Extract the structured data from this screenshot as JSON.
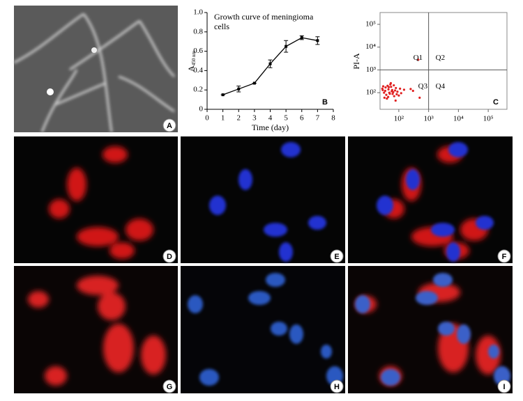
{
  "chart_data": [
    {
      "type": "line",
      "title": [
        "Growth curve of meningioma",
        "cells"
      ],
      "xlabel": "Time (day)",
      "ylabel": "A",
      "ylabel_sub": "450 nm",
      "panel": "B",
      "x": [
        1,
        2,
        3,
        4,
        5,
        6,
        7
      ],
      "series": [
        {
          "color": "#000000",
          "values": [
            0.15,
            0.21,
            0.27,
            0.47,
            0.65,
            0.74,
            0.71
          ],
          "errors": [
            0,
            0.03,
            0,
            0.04,
            0.06,
            0.02,
            0.04
          ]
        }
      ],
      "xlim": [
        0,
        8
      ],
      "xticks": [
        0,
        1,
        2,
        3,
        4,
        5,
        6,
        7,
        8
      ],
      "ylim": [
        0,
        1
      ],
      "yticks": [
        0,
        0.2,
        0.4,
        0.6,
        0.8,
        {
          "value": 1,
          "label": "1.0"
        }
      ]
    },
    {
      "type": "scatter",
      "ylabel": "PI-A",
      "panel": "C",
      "log_scale": true,
      "color": "#e02020",
      "annotations": [
        "Q1",
        "Q2",
        "Q3",
        "Q4"
      ],
      "gate_x": 1000,
      "gate_y": 1000,
      "x": [
        35,
        50,
        28,
        70,
        42,
        90,
        60,
        33,
        55,
        120,
        45,
        80,
        38,
        65,
        30,
        100,
        52,
        75,
        40,
        150,
        48,
        85,
        36,
        58,
        250,
        44,
        68,
        32,
        110,
        62,
        300,
        500,
        54,
        29,
        78,
        46,
        450
      ],
      "values": [
        120,
        90,
        150,
        70,
        200,
        110,
        130,
        60,
        180,
        95,
        140,
        160,
        80,
        105,
        190,
        75,
        230,
        125,
        55,
        135,
        100,
        85,
        170,
        115,
        145,
        65,
        210,
        100,
        150,
        88,
        120,
        60,
        260,
        130,
        45,
        175,
        2800
      ],
      "xlim": [
        23.5,
        425000
      ],
      "xticks": [
        {
          "value": 100,
          "label": "10²"
        },
        {
          "value": 1000,
          "label": "10³"
        },
        {
          "value": 10000,
          "label": "10⁴"
        },
        {
          "value": 100000,
          "label": "10⁵"
        }
      ],
      "ylim": [
        18.6,
        330000
      ],
      "yticks": [
        {
          "value": 100,
          "label": "10²"
        },
        {
          "value": 1000,
          "label": "10³"
        },
        {
          "value": 10000,
          "label": "10⁴"
        },
        {
          "value": 100000,
          "label": "10⁵"
        }
      ]
    }
  ],
  "panels": [
    "A",
    "D",
    "E",
    "F",
    "G",
    "H",
    "I"
  ]
}
